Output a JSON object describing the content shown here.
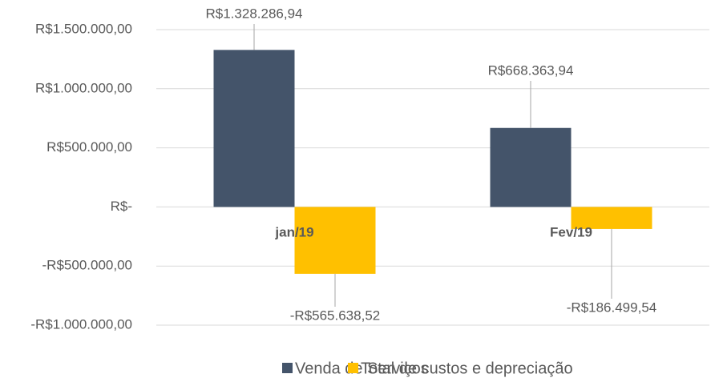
{
  "chart_data": {
    "type": "bar",
    "categories": [
      "jan/19",
      "Fev/19"
    ],
    "series": [
      {
        "name": "Venda de Serviços",
        "color": "#44546a",
        "values": [
          1328286.94,
          668363.94
        ],
        "value_labels": [
          "R$1.328.286,94",
          "R$668.363,94"
        ]
      },
      {
        "name": "Total de custos e depreciação",
        "color": "#ffc000",
        "values": [
          -565638.52,
          -186499.54
        ],
        "value_labels": [
          "-R$565.638,52",
          "-R$186.499,54"
        ]
      }
    ],
    "ylim": [
      -1000000,
      1500000
    ],
    "yticks": [
      {
        "value": -1000000,
        "label": "-R$1.000.000,00"
      },
      {
        "value": -500000,
        "label": "-R$500.000,00"
      },
      {
        "value": 0,
        "label": "R$-"
      },
      {
        "value": 500000,
        "label": "R$500.000,00"
      },
      {
        "value": 1000000,
        "label": "R$1.000.000,00"
      },
      {
        "value": 1500000,
        "label": "R$1.500.000,00"
      }
    ],
    "grid": true,
    "legend": "bottom"
  }
}
